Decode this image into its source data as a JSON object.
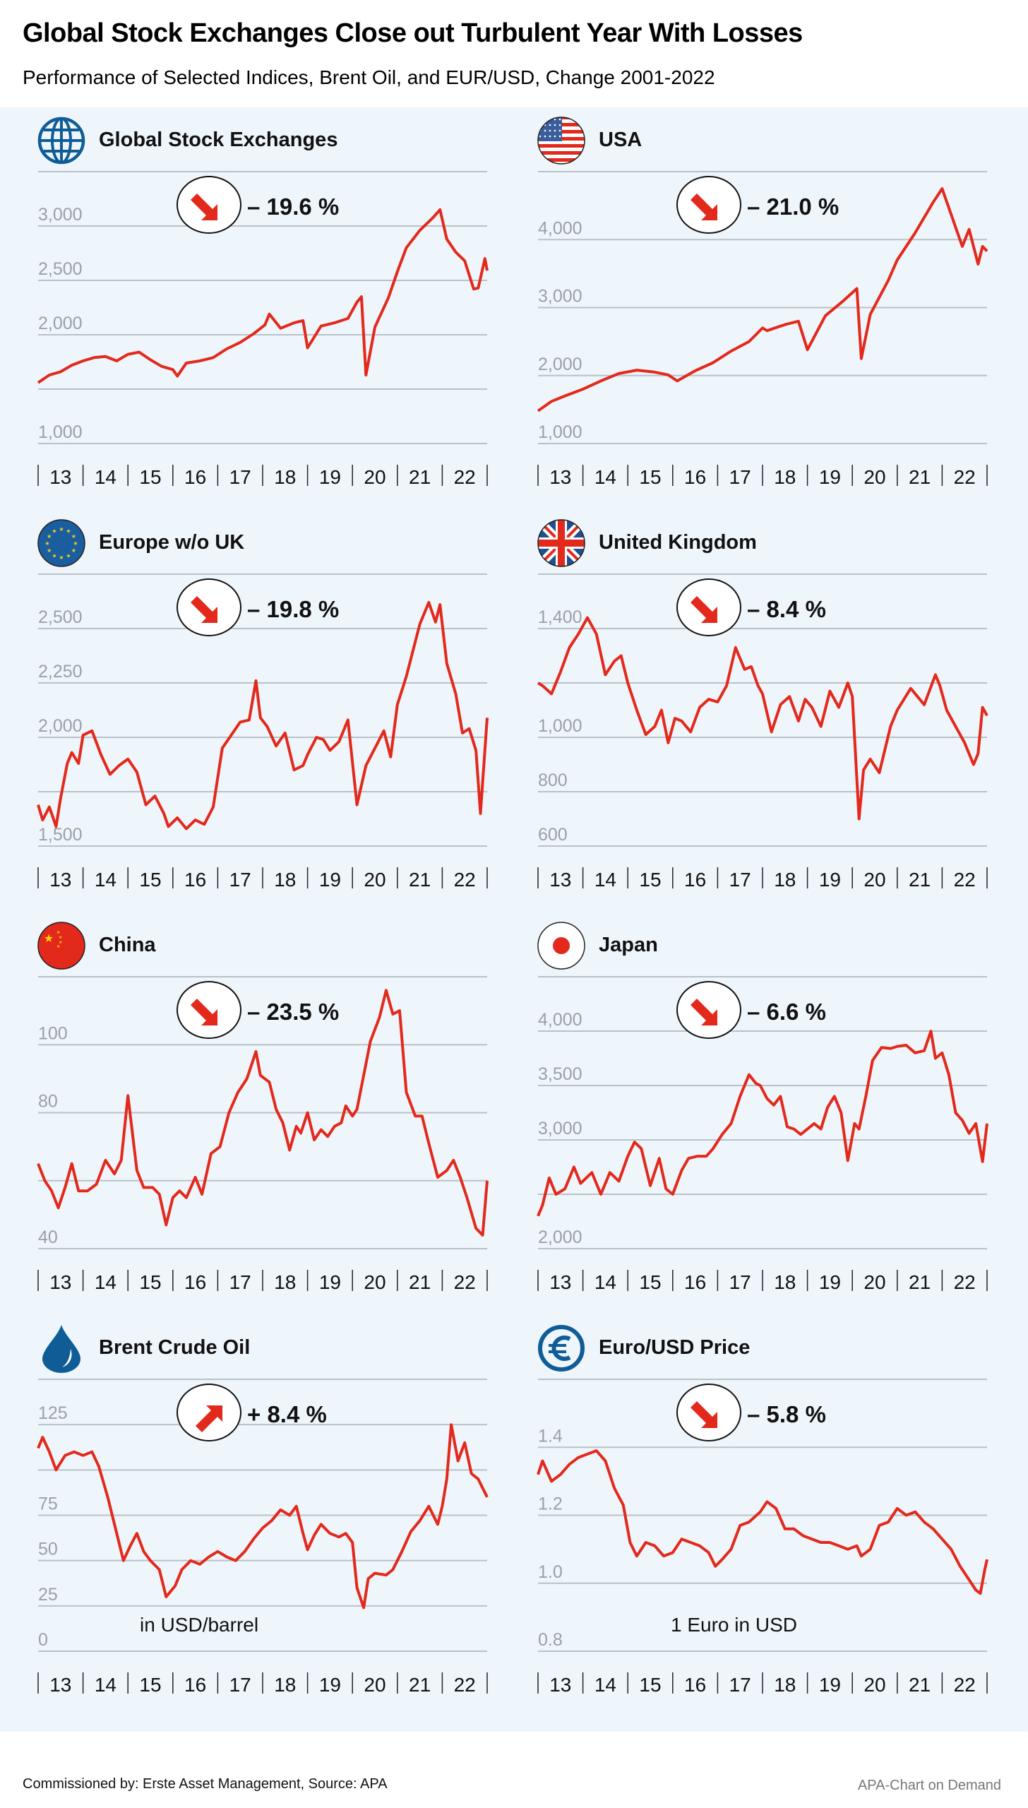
{
  "header": {
    "title": "Global Stock Exchanges Close out Turbulent Year With Losses",
    "subtitle": "Performance of Selected Indices, Brent Oil, and EUR/USD, Change 2001-2022"
  },
  "footer": {
    "source": "Commissioned by: Erste Asset Management, Source: APA",
    "credit": "APA-Chart on Demand"
  },
  "colors": {
    "line": "#e3291b",
    "arrow": "#e3291b",
    "grid": "#b9c1c9",
    "tick_label": "#9aa0a6",
    "icon_blue": "#0f5c97",
    "background": "#eef6fc"
  },
  "chart_data": [
    {
      "type": "line",
      "id": "global",
      "title": "Global Stock Exchanges",
      "icon": "globe-icon",
      "change": "– 19.6 %",
      "direction": "down",
      "note": "",
      "ylim": [
        1000,
        3500
      ],
      "yticks": [
        1000,
        1500,
        2000,
        2500,
        3000,
        3500
      ],
      "ytick_labels": [
        "1,000",
        "",
        "2,000",
        "2,500",
        "3,000",
        ""
      ],
      "x_labels": [
        "13",
        "14",
        "15",
        "16",
        "17",
        "18",
        "19",
        "20",
        "21",
        "22"
      ],
      "x": [
        2013.0,
        2013.25,
        2013.5,
        2013.75,
        2014.0,
        2014.25,
        2014.5,
        2014.75,
        2015.0,
        2015.25,
        2015.5,
        2015.75,
        2016.0,
        2016.1,
        2016.3,
        2016.6,
        2016.9,
        2017.2,
        2017.5,
        2017.8,
        2018.05,
        2018.15,
        2018.4,
        2018.7,
        2018.9,
        2019.0,
        2019.3,
        2019.6,
        2019.9,
        2020.1,
        2020.2,
        2020.3,
        2020.5,
        2020.8,
        2021.0,
        2021.2,
        2021.5,
        2021.8,
        2021.95,
        2022.1,
        2022.3,
        2022.5,
        2022.7,
        2022.8,
        2022.95,
        2023.0
      ],
      "values": [
        1560,
        1630,
        1660,
        1720,
        1760,
        1790,
        1800,
        1760,
        1820,
        1840,
        1770,
        1710,
        1680,
        1620,
        1740,
        1760,
        1790,
        1870,
        1930,
        2010,
        2090,
        2190,
        2060,
        2110,
        2130,
        1880,
        2080,
        2110,
        2150,
        2300,
        2350,
        1630,
        2070,
        2340,
        2580,
        2800,
        2960,
        3080,
        3150,
        2880,
        2760,
        2680,
        2420,
        2430,
        2700,
        2590
      ]
    },
    {
      "type": "line",
      "id": "usa",
      "title": "USA",
      "icon": "us-flag-icon",
      "change": "– 21.0 %",
      "direction": "down",
      "note": "",
      "ylim": [
        1000,
        5000
      ],
      "yticks": [
        1000,
        2000,
        3000,
        4000,
        5000
      ],
      "ytick_labels": [
        "1,000",
        "2,000",
        "3,000",
        "4,000",
        ""
      ],
      "x_labels": [
        "13",
        "14",
        "15",
        "16",
        "17",
        "18",
        "19",
        "20",
        "21",
        "22"
      ],
      "x": [
        2013.0,
        2013.3,
        2013.6,
        2014.0,
        2014.4,
        2014.8,
        2015.2,
        2015.6,
        2015.9,
        2016.1,
        2016.5,
        2016.9,
        2017.3,
        2017.7,
        2018.0,
        2018.1,
        2018.5,
        2018.8,
        2019.0,
        2019.4,
        2019.8,
        2020.1,
        2020.2,
        2020.4,
        2020.8,
        2021.0,
        2021.4,
        2021.8,
        2022.0,
        2022.3,
        2022.45,
        2022.6,
        2022.8,
        2022.9,
        2023.0
      ],
      "values": [
        1480,
        1620,
        1700,
        1800,
        1920,
        2030,
        2080,
        2050,
        2010,
        1920,
        2070,
        2190,
        2360,
        2500,
        2700,
        2660,
        2750,
        2800,
        2380,
        2880,
        3100,
        3280,
        2250,
        2900,
        3400,
        3700,
        4100,
        4550,
        4750,
        4180,
        3900,
        4150,
        3640,
        3900,
        3830
      ]
    },
    {
      "type": "line",
      "id": "europe",
      "title": "Europe w/o UK",
      "icon": "eu-flag-icon",
      "change": "– 19.8 %",
      "direction": "down",
      "note": "",
      "ylim": [
        1500,
        2750
      ],
      "yticks": [
        1500,
        1750,
        2000,
        2250,
        2500,
        2750
      ],
      "ytick_labels": [
        "1,500",
        "",
        "2,000",
        "2,250",
        "2,500",
        ""
      ],
      "x_labels": [
        "13",
        "14",
        "15",
        "16",
        "17",
        "18",
        "19",
        "20",
        "21",
        "22"
      ],
      "x": [
        2013.0,
        2013.1,
        2013.25,
        2013.4,
        2013.5,
        2013.65,
        2013.75,
        2013.9,
        2014.0,
        2014.2,
        2014.4,
        2014.6,
        2014.8,
        2015.0,
        2015.2,
        2015.4,
        2015.6,
        2015.8,
        2015.9,
        2016.1,
        2016.3,
        2016.5,
        2016.7,
        2016.9,
        2017.1,
        2017.3,
        2017.5,
        2017.7,
        2017.85,
        2017.95,
        2018.1,
        2018.3,
        2018.5,
        2018.7,
        2018.9,
        2019.0,
        2019.2,
        2019.35,
        2019.5,
        2019.7,
        2019.9,
        2020.1,
        2020.3,
        2020.7,
        2020.85,
        2021.0,
        2021.2,
        2021.5,
        2021.7,
        2021.85,
        2021.95,
        2022.1,
        2022.3,
        2022.45,
        2022.6,
        2022.75,
        2022.85,
        2023.0
      ],
      "values": [
        1690,
        1620,
        1680,
        1590,
        1720,
        1880,
        1930,
        1880,
        2010,
        2030,
        1920,
        1830,
        1870,
        1900,
        1840,
        1690,
        1730,
        1650,
        1590,
        1630,
        1580,
        1620,
        1600,
        1680,
        1950,
        2010,
        2070,
        2080,
        2260,
        2090,
        2050,
        1960,
        2020,
        1850,
        1870,
        1920,
        2000,
        1990,
        1940,
        1980,
        2080,
        1690,
        1870,
        2030,
        1910,
        2150,
        2280,
        2520,
        2620,
        2530,
        2610,
        2340,
        2200,
        2020,
        2040,
        1940,
        1650,
        2090
      ]
    },
    {
      "type": "line",
      "id": "uk",
      "title": "United Kingdom",
      "icon": "uk-flag-icon",
      "change": "– 8.4 %",
      "direction": "down",
      "note": "",
      "ylim": [
        600,
        1600
      ],
      "yticks": [
        600,
        800,
        1000,
        1200,
        1400,
        1600
      ],
      "ytick_labels": [
        "600",
        "800",
        "1,000",
        "",
        "1,400",
        ""
      ],
      "x_labels": [
        "13",
        "14",
        "15",
        "16",
        "17",
        "18",
        "19",
        "20",
        "21",
        "22"
      ],
      "x": [
        2013.0,
        2013.1,
        2013.3,
        2013.5,
        2013.7,
        2013.9,
        2014.1,
        2014.3,
        2014.5,
        2014.7,
        2014.85,
        2015.0,
        2015.2,
        2015.4,
        2015.6,
        2015.75,
        2015.9,
        2016.05,
        2016.2,
        2016.4,
        2016.6,
        2016.8,
        2017.0,
        2017.2,
        2017.4,
        2017.6,
        2017.75,
        2017.9,
        2018.0,
        2018.2,
        2018.4,
        2018.6,
        2018.8,
        2018.95,
        2019.1,
        2019.3,
        2019.5,
        2019.7,
        2019.9,
        2020.0,
        2020.15,
        2020.25,
        2020.4,
        2020.6,
        2020.85,
        2021.0,
        2021.3,
        2021.6,
        2021.85,
        2021.95,
        2022.1,
        2022.3,
        2022.5,
        2022.7,
        2022.8,
        2022.9,
        2023.0
      ],
      "values": [
        1200,
        1190,
        1160,
        1240,
        1330,
        1380,
        1440,
        1380,
        1230,
        1280,
        1300,
        1200,
        1100,
        1010,
        1040,
        1100,
        980,
        1070,
        1060,
        1020,
        1110,
        1140,
        1130,
        1190,
        1330,
        1250,
        1260,
        1190,
        1160,
        1020,
        1120,
        1150,
        1060,
        1140,
        1110,
        1040,
        1170,
        1110,
        1200,
        1150,
        700,
        880,
        920,
        870,
        1040,
        1100,
        1180,
        1120,
        1230,
        1190,
        1100,
        1040,
        980,
        900,
        940,
        1110,
        1080
      ]
    },
    {
      "type": "line",
      "id": "china",
      "title": "China",
      "icon": "china-flag-icon",
      "change": "– 23.5 %",
      "direction": "down",
      "note": "",
      "ylim": [
        40,
        120
      ],
      "yticks": [
        40,
        60,
        80,
        100,
        120
      ],
      "ytick_labels": [
        "40",
        "",
        "80",
        "100",
        ""
      ],
      "x_labels": [
        "13",
        "14",
        "15",
        "16",
        "17",
        "18",
        "19",
        "20",
        "21",
        "22"
      ],
      "x": [
        2013.0,
        2013.15,
        2013.3,
        2013.45,
        2013.6,
        2013.75,
        2013.9,
        2014.1,
        2014.3,
        2014.5,
        2014.7,
        2014.85,
        2015.0,
        2015.2,
        2015.35,
        2015.55,
        2015.7,
        2015.85,
        2016.0,
        2016.15,
        2016.3,
        2016.5,
        2016.65,
        2016.85,
        2017.05,
        2017.25,
        2017.45,
        2017.65,
        2017.85,
        2017.95,
        2018.15,
        2018.3,
        2018.45,
        2018.6,
        2018.75,
        2018.85,
        2019.0,
        2019.15,
        2019.3,
        2019.45,
        2019.6,
        2019.75,
        2019.85,
        2020.0,
        2020.1,
        2020.25,
        2020.4,
        2020.6,
        2020.75,
        2020.9,
        2021.05,
        2021.2,
        2021.4,
        2021.55,
        2021.7,
        2021.9,
        2022.1,
        2022.25,
        2022.4,
        2022.55,
        2022.75,
        2022.9,
        2023.0
      ],
      "values": [
        65,
        60,
        57,
        52,
        58,
        65,
        57,
        57,
        59,
        66,
        62,
        66,
        85,
        63,
        58,
        58,
        56,
        47,
        55,
        57,
        55,
        61,
        56,
        68,
        70,
        80,
        86,
        90,
        98,
        91,
        89,
        81,
        77,
        69,
        76,
        74,
        80,
        72,
        75,
        73,
        76,
        77,
        82,
        79,
        81,
        91,
        101,
        108,
        116,
        109,
        110,
        86,
        79,
        79,
        71,
        61,
        63,
        66,
        61,
        55,
        46,
        44,
        60
      ]
    },
    {
      "type": "line",
      "id": "japan",
      "title": "Japan",
      "icon": "japan-flag-icon",
      "change": "– 6.6 %",
      "direction": "down",
      "note": "",
      "ylim": [
        2000,
        4500
      ],
      "yticks": [
        2000,
        2500,
        3000,
        3500,
        4000,
        4500
      ],
      "ytick_labels": [
        "2,000",
        "",
        "3,000",
        "3,500",
        "4,000",
        ""
      ],
      "x_labels": [
        "13",
        "14",
        "15",
        "16",
        "17",
        "18",
        "19",
        "20",
        "21",
        "22"
      ],
      "x": [
        2013.0,
        2013.1,
        2013.25,
        2013.4,
        2013.6,
        2013.8,
        2013.95,
        2014.2,
        2014.4,
        2014.6,
        2014.8,
        2015.0,
        2015.15,
        2015.3,
        2015.5,
        2015.7,
        2015.85,
        2016.0,
        2016.2,
        2016.35,
        2016.55,
        2016.75,
        2016.9,
        2017.1,
        2017.3,
        2017.5,
        2017.7,
        2017.85,
        2017.95,
        2018.1,
        2018.25,
        2018.4,
        2018.55,
        2018.7,
        2018.85,
        2019.0,
        2019.15,
        2019.3,
        2019.45,
        2019.6,
        2019.75,
        2019.9,
        2020.05,
        2020.15,
        2020.3,
        2020.45,
        2020.65,
        2020.85,
        2021.0,
        2021.2,
        2021.4,
        2021.6,
        2021.75,
        2021.85,
        2022.0,
        2022.15,
        2022.3,
        2022.45,
        2022.6,
        2022.75,
        2022.9,
        2023.0
      ],
      "values": [
        2300,
        2400,
        2650,
        2500,
        2550,
        2750,
        2600,
        2700,
        2500,
        2700,
        2620,
        2850,
        2980,
        2920,
        2580,
        2830,
        2550,
        2500,
        2720,
        2830,
        2850,
        2850,
        2920,
        3050,
        3150,
        3400,
        3600,
        3520,
        3500,
        3380,
        3320,
        3400,
        3120,
        3100,
        3050,
        3100,
        3150,
        3100,
        3300,
        3400,
        3250,
        2810,
        3150,
        3100,
        3400,
        3730,
        3850,
        3840,
        3860,
        3870,
        3800,
        3820,
        4000,
        3750,
        3800,
        3600,
        3250,
        3180,
        3060,
        3150,
        2800,
        3150
      ]
    },
    {
      "type": "line",
      "id": "brent",
      "title": "Brent Crude Oil",
      "icon": "oil-drop-icon",
      "change": "+ 8.4 %",
      "direction": "up",
      "note": "in USD/barrel",
      "ylim": [
        0,
        150
      ],
      "yticks": [
        0,
        25,
        50,
        75,
        100,
        125,
        150
      ],
      "ytick_labels": [
        "0",
        "25",
        "50",
        "75",
        "",
        "125",
        ""
      ],
      "x_labels": [
        "13",
        "14",
        "15",
        "16",
        "17",
        "18",
        "19",
        "20",
        "21",
        "22"
      ],
      "x": [
        2013.0,
        2013.1,
        2013.25,
        2013.4,
        2013.6,
        2013.8,
        2014.0,
        2014.2,
        2014.35,
        2014.55,
        2014.75,
        2014.9,
        2015.05,
        2015.2,
        2015.35,
        2015.5,
        2015.7,
        2015.85,
        2016.05,
        2016.2,
        2016.4,
        2016.6,
        2016.8,
        2017.0,
        2017.2,
        2017.4,
        2017.6,
        2017.8,
        2018.0,
        2018.2,
        2018.4,
        2018.6,
        2018.75,
        2018.9,
        2019.0,
        2019.15,
        2019.3,
        2019.5,
        2019.7,
        2019.85,
        2020.0,
        2020.1,
        2020.25,
        2020.35,
        2020.5,
        2020.75,
        2020.9,
        2021.1,
        2021.3,
        2021.5,
        2021.7,
        2021.9,
        2022.0,
        2022.1,
        2022.2,
        2022.35,
        2022.5,
        2022.65,
        2022.8,
        2022.9,
        2023.0
      ],
      "values": [
        112,
        118,
        110,
        100,
        108,
        110,
        108,
        110,
        102,
        85,
        65,
        50,
        58,
        65,
        55,
        50,
        45,
        30,
        36,
        45,
        50,
        48,
        52,
        55,
        52,
        50,
        55,
        62,
        68,
        72,
        78,
        75,
        80,
        65,
        56,
        64,
        70,
        65,
        63,
        65,
        60,
        35,
        24,
        40,
        43,
        42,
        45,
        55,
        66,
        72,
        80,
        70,
        80,
        95,
        125,
        105,
        115,
        98,
        95,
        90,
        85
      ]
    },
    {
      "type": "line",
      "id": "eurusd",
      "title": "Euro/USD Price",
      "icon": "euro-icon",
      "change": "– 5.8 %",
      "direction": "down",
      "note": "1 Euro in USD",
      "ylim": [
        0.8,
        1.6
      ],
      "yticks": [
        0.8,
        1.0,
        1.2,
        1.4,
        1.6
      ],
      "ytick_labels": [
        "0.8",
        "1.0",
        "1.2",
        "1.4",
        ""
      ],
      "x_labels": [
        "13",
        "14",
        "15",
        "16",
        "17",
        "18",
        "19",
        "20",
        "21",
        "22"
      ],
      "x": [
        2013.0,
        2013.1,
        2013.3,
        2013.5,
        2013.7,
        2013.9,
        2014.1,
        2014.3,
        2014.5,
        2014.7,
        2014.9,
        2015.05,
        2015.2,
        2015.4,
        2015.6,
        2015.8,
        2016.0,
        2016.2,
        2016.4,
        2016.6,
        2016.8,
        2016.95,
        2017.1,
        2017.3,
        2017.5,
        2017.7,
        2017.95,
        2018.1,
        2018.3,
        2018.5,
        2018.7,
        2018.9,
        2019.1,
        2019.3,
        2019.5,
        2019.7,
        2019.9,
        2020.1,
        2020.2,
        2020.4,
        2020.6,
        2020.8,
        2021.0,
        2021.2,
        2021.4,
        2021.6,
        2021.8,
        2022.0,
        2022.2,
        2022.4,
        2022.6,
        2022.75,
        2022.85,
        2022.95,
        2023.0
      ],
      "values": [
        1.32,
        1.36,
        1.3,
        1.32,
        1.35,
        1.37,
        1.38,
        1.39,
        1.36,
        1.28,
        1.23,
        1.12,
        1.08,
        1.12,
        1.11,
        1.08,
        1.09,
        1.13,
        1.12,
        1.11,
        1.09,
        1.05,
        1.07,
        1.1,
        1.17,
        1.18,
        1.21,
        1.24,
        1.22,
        1.16,
        1.16,
        1.14,
        1.13,
        1.12,
        1.12,
        1.11,
        1.1,
        1.11,
        1.08,
        1.1,
        1.17,
        1.18,
        1.22,
        1.2,
        1.21,
        1.18,
        1.16,
        1.13,
        1.1,
        1.05,
        1.01,
        0.98,
        0.97,
        1.04,
        1.07
      ]
    }
  ]
}
